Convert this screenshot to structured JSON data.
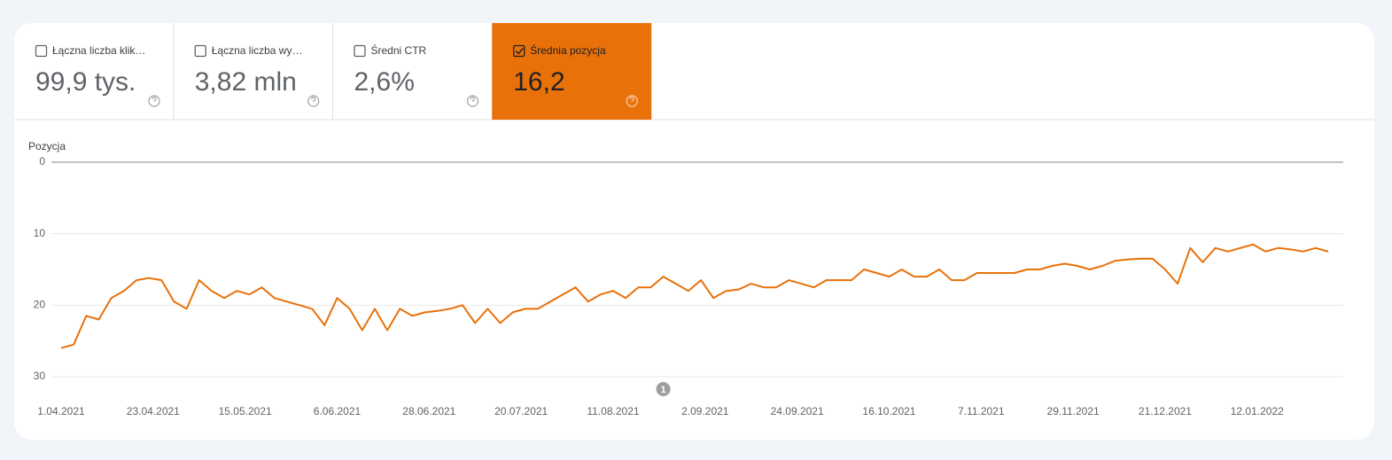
{
  "metrics": [
    {
      "label": "Łączna liczba klik…",
      "value": "99,9 tys.",
      "selected": false
    },
    {
      "label": "Łączna liczba wy…",
      "value": "3,82 mln",
      "selected": false
    },
    {
      "label": "Średni CTR",
      "value": "2,6%",
      "selected": false
    },
    {
      "label": "Średnia pozycja",
      "value": "16,2",
      "selected": true
    }
  ],
  "chart_data": {
    "type": "line",
    "y_label": "Pozycja",
    "color": "#e8710a",
    "inverted": true,
    "grid": true,
    "x": [
      "2021-04-01",
      "2021-04-04",
      "2021-04-07",
      "2021-04-10",
      "2021-04-13",
      "2021-04-16",
      "2021-04-19",
      "2021-04-22",
      "2021-04-25",
      "2021-04-28",
      "2021-05-01",
      "2021-05-04",
      "2021-05-07",
      "2021-05-10",
      "2021-05-13",
      "2021-05-16",
      "2021-05-19",
      "2021-05-22",
      "2021-05-25",
      "2021-05-28",
      "2021-05-31",
      "2021-06-03",
      "2021-06-06",
      "2021-06-09",
      "2021-06-12",
      "2021-06-15",
      "2021-06-18",
      "2021-06-21",
      "2021-06-24",
      "2021-06-27",
      "2021-06-30",
      "2021-07-03",
      "2021-07-06",
      "2021-07-09",
      "2021-07-12",
      "2021-07-15",
      "2021-07-18",
      "2021-07-21",
      "2021-07-24",
      "2021-07-27",
      "2021-07-30",
      "2021-08-02",
      "2021-08-05",
      "2021-08-08",
      "2021-08-11",
      "2021-08-14",
      "2021-08-17",
      "2021-08-20",
      "2021-08-23",
      "2021-08-26",
      "2021-08-29",
      "2021-09-01",
      "2021-09-04",
      "2021-09-07",
      "2021-09-10",
      "2021-09-13",
      "2021-09-16",
      "2021-09-19",
      "2021-09-22",
      "2021-09-25",
      "2021-09-28",
      "2021-10-01",
      "2021-10-04",
      "2021-10-07",
      "2021-10-10",
      "2021-10-13",
      "2021-10-16",
      "2021-10-19",
      "2021-10-22",
      "2021-10-25",
      "2021-10-28",
      "2021-10-31",
      "2021-11-03",
      "2021-11-06",
      "2021-11-09",
      "2021-11-12",
      "2021-11-15",
      "2021-11-18",
      "2021-11-21",
      "2021-11-24",
      "2021-11-27",
      "2021-11-30",
      "2021-12-03",
      "2021-12-06",
      "2021-12-09",
      "2021-12-12",
      "2021-12-15",
      "2021-12-18",
      "2021-12-21",
      "2021-12-24",
      "2021-12-27",
      "2021-12-30",
      "2022-01-02",
      "2022-01-05",
      "2022-01-08",
      "2022-01-11",
      "2022-01-14",
      "2022-01-17",
      "2022-01-20",
      "2022-01-23",
      "2022-01-26",
      "2022-01-29"
    ],
    "values": [
      26,
      25.5,
      21.5,
      22,
      19,
      18,
      16.5,
      16.2,
      16.5,
      19.5,
      20.5,
      16.5,
      18,
      19,
      18,
      18.5,
      17.5,
      19,
      19.5,
      20,
      20.5,
      22.8,
      19,
      20.5,
      23.5,
      20.5,
      23.5,
      20.5,
      21.5,
      21,
      20.8,
      20.5,
      20,
      22.5,
      20.5,
      22.5,
      21,
      20.5,
      20.5,
      19.5,
      18.5,
      17.5,
      19.5,
      18.5,
      18,
      19,
      17.5,
      17.5,
      16,
      17,
      18,
      16.5,
      19,
      18,
      17.8,
      17,
      17.5,
      17.5,
      16.5,
      17,
      17.5,
      16.5,
      16.5,
      16.5,
      15,
      15.5,
      16,
      15,
      16,
      16,
      15,
      16.5,
      16.5,
      15.5,
      15.5,
      15.5,
      15.5,
      15,
      15,
      14.5,
      14.2,
      14.5,
      15,
      14.5,
      13.8,
      13.6,
      13.5,
      13.5,
      15,
      17,
      12,
      14,
      12,
      12.5,
      12,
      11.5,
      12.5,
      12,
      12.2,
      12.5,
      12,
      12.5
    ],
    "xlim": [
      "2021-04-01",
      "2022-01-29"
    ],
    "xticks": [
      {
        "value": "2021-04-01",
        "label": "1.04.2021"
      },
      {
        "value": "2021-04-23",
        "label": "23.04.2021"
      },
      {
        "value": "2021-05-15",
        "label": "15.05.2021"
      },
      {
        "value": "2021-06-06",
        "label": "6.06.2021"
      },
      {
        "value": "2021-06-28",
        "label": "28.06.2021"
      },
      {
        "value": "2021-07-20",
        "label": "20.07.2021"
      },
      {
        "value": "2021-08-11",
        "label": "11.08.2021"
      },
      {
        "value": "2021-09-02",
        "label": "2.09.2021"
      },
      {
        "value": "2021-09-24",
        "label": "24.09.2021"
      },
      {
        "value": "2021-10-16",
        "label": "16.10.2021"
      },
      {
        "value": "2021-11-07",
        "label": "7.11.2021"
      },
      {
        "value": "2021-11-29",
        "label": "29.11.2021"
      },
      {
        "value": "2021-12-21",
        "label": "21.12.2021"
      },
      {
        "value": "2022-01-12",
        "label": "12.01.2022"
      }
    ],
    "ylim": [
      0,
      30
    ],
    "yticks": [
      0,
      10,
      20,
      30
    ],
    "annotations": [
      {
        "x": "2021-08-23",
        "label": "1"
      }
    ]
  }
}
